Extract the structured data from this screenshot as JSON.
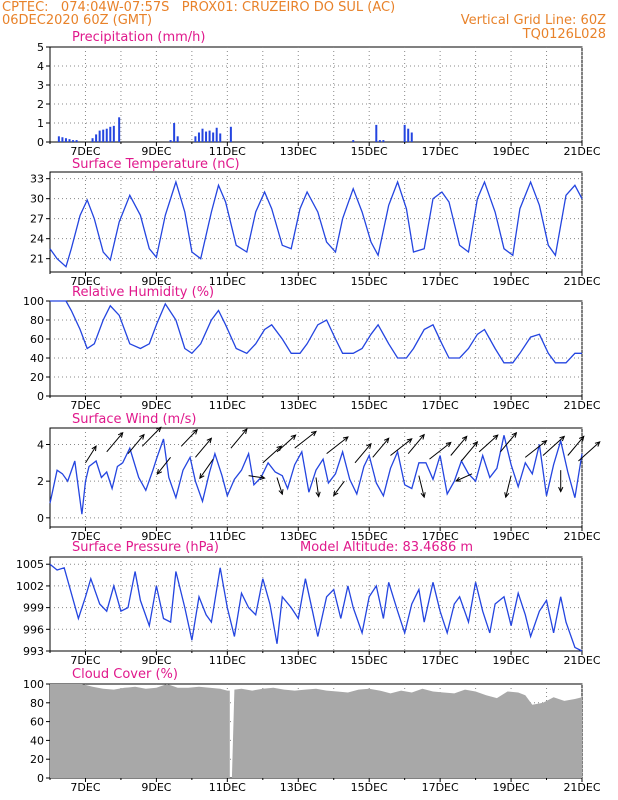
{
  "header": {
    "line1_left": "CPTEC:   074:04W-07:57S   PROX01: CRUZEIRO DO SUL (AC)",
    "line2_left": "06DEC2020 60Z (GMT)",
    "line2_right": "Vertical Grid Line: 60Z",
    "line3_right": "TQ0126L028",
    "color": "#e8822a"
  },
  "x_tick_labels": [
    "7DEC",
    "9DEC",
    "11DEC",
    "13DEC",
    "15DEC",
    "17DEC",
    "19DEC",
    "21DEC"
  ],
  "colors": {
    "title": "#e0198c",
    "line": "#2445e0",
    "bar": "#2445e0",
    "cloud": "#a8a8a8",
    "arrow": "#000000",
    "grid": "#888888"
  },
  "chart_data": [
    {
      "type": "bar",
      "title": "Precipitation (mm/h)",
      "ylim": [
        0,
        5
      ],
      "yticks": [
        0,
        1,
        2,
        3,
        4,
        5
      ],
      "x_unit": "days since 06DEC2020 00Z",
      "x": [
        0.25,
        0.35,
        0.45,
        0.55,
        0.65,
        0.75,
        1.2,
        1.3,
        1.4,
        1.5,
        1.6,
        1.7,
        1.8,
        1.95,
        3.4,
        3.5,
        3.6,
        4.1,
        4.2,
        4.3,
        4.4,
        4.5,
        4.6,
        4.7,
        4.8,
        5.1,
        8.55,
        9.2,
        9.3,
        9.4,
        10.0,
        10.1,
        10.2
      ],
      "values": [
        0.3,
        0.25,
        0.2,
        0.15,
        0.1,
        0.1,
        0.2,
        0.4,
        0.6,
        0.65,
        0.7,
        0.8,
        0.85,
        1.3,
        0.1,
        1.0,
        0.3,
        0.3,
        0.5,
        0.7,
        0.55,
        0.6,
        0.5,
        0.75,
        0.45,
        0.8,
        0.1,
        0.9,
        0.1,
        0.1,
        0.9,
        0.7,
        0.5
      ]
    },
    {
      "type": "line",
      "title": "Surface Temperature (nC)",
      "ylim": [
        19,
        34
      ],
      "yticks": [
        21,
        24,
        27,
        30,
        33
      ],
      "x": [
        0.0,
        0.2,
        0.45,
        0.6,
        0.85,
        1.05,
        1.25,
        1.5,
        1.7,
        1.95,
        2.25,
        2.55,
        2.8,
        3.0,
        3.25,
        3.55,
        3.8,
        4.0,
        4.25,
        4.55,
        4.75,
        4.95,
        5.25,
        5.55,
        5.8,
        6.05,
        6.25,
        6.55,
        6.8,
        7.05,
        7.25,
        7.55,
        7.8,
        8.05,
        8.25,
        8.55,
        8.8,
        9.05,
        9.25,
        9.55,
        9.8,
        10.05,
        10.25,
        10.55,
        10.8,
        11.05,
        11.25,
        11.55,
        11.8,
        12.05,
        12.25,
        12.55,
        12.8,
        13.05,
        13.25,
        13.55,
        13.8,
        14.05,
        14.25,
        14.55,
        14.8,
        15.0
      ],
      "values": [
        22.5,
        21.0,
        19.8,
        22.5,
        27.5,
        29.8,
        27.0,
        22.0,
        20.8,
        26.5,
        30.5,
        27.5,
        22.5,
        21.2,
        27.5,
        32.5,
        28.0,
        22.0,
        21.0,
        28.0,
        32.0,
        29.5,
        23.0,
        22.0,
        28.0,
        31.0,
        28.5,
        23.0,
        22.5,
        28.5,
        31.0,
        28.0,
        23.5,
        22.0,
        27.0,
        31.5,
        28.0,
        23.5,
        21.5,
        29.0,
        32.5,
        28.5,
        22.0,
        22.5,
        30.0,
        31.0,
        29.5,
        23.0,
        22.0,
        30.0,
        32.5,
        28.0,
        22.5,
        21.5,
        28.5,
        32.5,
        29.0,
        23.0,
        21.5,
        30.5,
        32.0,
        30.0
      ]
    },
    {
      "type": "line",
      "title": "Relative Humidity (%)",
      "ylim": [
        0,
        100
      ],
      "yticks": [
        0,
        20,
        40,
        60,
        80,
        100
      ],
      "x": [
        0.0,
        0.45,
        0.6,
        0.85,
        1.05,
        1.25,
        1.5,
        1.7,
        1.95,
        2.25,
        2.55,
        2.8,
        3.0,
        3.25,
        3.55,
        3.8,
        4.0,
        4.25,
        4.55,
        4.75,
        4.95,
        5.25,
        5.55,
        5.8,
        6.05,
        6.25,
        6.55,
        6.8,
        7.05,
        7.25,
        7.55,
        7.8,
        8.05,
        8.25,
        8.55,
        8.8,
        9.05,
        9.25,
        9.55,
        9.8,
        10.05,
        10.25,
        10.55,
        10.8,
        11.05,
        11.25,
        11.55,
        11.8,
        12.05,
        12.25,
        12.55,
        12.8,
        13.05,
        13.25,
        13.55,
        13.8,
        14.05,
        14.25,
        14.55,
        14.8,
        15.0
      ],
      "values": [
        100,
        100,
        90,
        70,
        50,
        55,
        80,
        95,
        85,
        55,
        50,
        55,
        75,
        97,
        80,
        50,
        45,
        55,
        80,
        90,
        75,
        50,
        45,
        55,
        70,
        75,
        60,
        45,
        45,
        55,
        75,
        80,
        60,
        45,
        45,
        50,
        65,
        75,
        55,
        40,
        40,
        50,
        70,
        75,
        55,
        40,
        40,
        50,
        65,
        70,
        50,
        35,
        35,
        45,
        62,
        65,
        45,
        35,
        35,
        45,
        45
      ]
    },
    {
      "type": "line",
      "title": "Surface Wind (m/s)",
      "ylim": [
        -0.5,
        4.9
      ],
      "yticks": [
        0,
        2,
        4
      ],
      "x": [
        0.0,
        0.2,
        0.35,
        0.5,
        0.7,
        0.9,
        1.0,
        1.1,
        1.3,
        1.45,
        1.6,
        1.75,
        1.9,
        2.05,
        2.25,
        2.5,
        2.7,
        2.9,
        3.0,
        3.2,
        3.35,
        3.55,
        3.75,
        3.95,
        4.1,
        4.3,
        4.5,
        4.65,
        4.85,
        5.0,
        5.2,
        5.4,
        5.6,
        5.75,
        5.95,
        6.15,
        6.35,
        6.55,
        6.7,
        6.9,
        7.1,
        7.3,
        7.5,
        7.7,
        7.85,
        8.05,
        8.25,
        8.45,
        8.65,
        8.85,
        9.0,
        9.2,
        9.4,
        9.6,
        9.8,
        10.0,
        10.2,
        10.4,
        10.6,
        10.8,
        11.0,
        11.2,
        11.4,
        11.6,
        11.8,
        12.0,
        12.2,
        12.4,
        12.6,
        12.8,
        13.0,
        13.2,
        13.4,
        13.6,
        13.8,
        14.0,
        14.2,
        14.4,
        14.6,
        14.8,
        15.0
      ],
      "values": [
        0.8,
        2.6,
        2.4,
        2.0,
        3.1,
        0.2,
        2.0,
        2.8,
        3.1,
        2.2,
        2.5,
        1.6,
        2.8,
        3.0,
        3.8,
        2.2,
        1.5,
        2.6,
        3.2,
        4.3,
        2.2,
        1.1,
        2.6,
        3.3,
        2.0,
        0.9,
        2.5,
        3.5,
        2.3,
        1.2,
        2.1,
        2.6,
        3.5,
        1.8,
        2.2,
        3.0,
        2.5,
        2.3,
        1.6,
        2.9,
        3.6,
        1.4,
        2.6,
        3.2,
        1.9,
        2.4,
        3.6,
        2.1,
        1.3,
        2.8,
        3.4,
        1.9,
        1.2,
        2.7,
        3.6,
        1.8,
        1.6,
        3.0,
        3.0,
        2.1,
        3.4,
        1.3,
        2.0,
        3.1,
        2.4,
        2.0,
        3.4,
        2.2,
        2.7,
        4.5,
        2.9,
        1.7,
        3.0,
        2.4,
        4.0,
        1.2,
        2.9,
        4.2,
        2.5,
        1.1,
        3.5
      ]
    },
    {
      "type": "line",
      "title": "Surface Pressure (hPa)",
      "subtitle": "Model Altitude: 83.4686 m",
      "ylim": [
        993,
        1006
      ],
      "yticks": [
        993,
        996,
        999,
        1002,
        1005
      ],
      "x": [
        0.0,
        0.2,
        0.4,
        0.6,
        0.8,
        1.0,
        1.15,
        1.4,
        1.6,
        1.8,
        2.0,
        2.2,
        2.4,
        2.55,
        2.8,
        3.0,
        3.2,
        3.4,
        3.55,
        3.8,
        4.0,
        4.2,
        4.4,
        4.55,
        4.8,
        5.0,
        5.2,
        5.4,
        5.6,
        5.8,
        6.0,
        6.2,
        6.4,
        6.55,
        6.8,
        7.0,
        7.2,
        7.4,
        7.55,
        7.8,
        8.0,
        8.2,
        8.4,
        8.55,
        8.8,
        9.0,
        9.2,
        9.4,
        9.55,
        9.8,
        10.0,
        10.2,
        10.4,
        10.55,
        10.8,
        11.0,
        11.2,
        11.4,
        11.55,
        11.8,
        12.0,
        12.2,
        12.4,
        12.55,
        12.8,
        13.0,
        13.2,
        13.4,
        13.55,
        13.8,
        14.0,
        14.2,
        14.4,
        14.55,
        14.8,
        15.0
      ],
      "values": [
        1005.0,
        1004.2,
        1004.5,
        1001.0,
        997.5,
        1000.5,
        1003.0,
        999.5,
        998.5,
        1002.0,
        998.5,
        999.0,
        1004.0,
        1000.0,
        996.5,
        1002.0,
        997.5,
        997.0,
        1004.0,
        999.0,
        994.5,
        1000.5,
        998.0,
        997.0,
        1004.5,
        999.0,
        995.0,
        1001.0,
        999.0,
        998.0,
        1003.0,
        999.5,
        994.0,
        1000.5,
        999.0,
        997.5,
        1003.0,
        998.5,
        995.0,
        1000.5,
        1001.5,
        997.5,
        1002.0,
        999.0,
        995.5,
        1000.5,
        1002.0,
        997.5,
        1002.5,
        998.5,
        995.5,
        999.5,
        1001.5,
        997.0,
        1002.5,
        998.5,
        995.5,
        999.5,
        1000.5,
        997.0,
        1002.5,
        998.5,
        995.5,
        999.5,
        1000.5,
        996.5,
        1001.0,
        998.0,
        995.0,
        998.5,
        1000.0,
        995.5,
        1000.5,
        997.0,
        993.5,
        993.0
      ]
    },
    {
      "type": "area",
      "title": "Cloud Cover (%)",
      "ylim": [
        0,
        100
      ],
      "yticks": [
        0,
        20,
        40,
        60,
        80,
        100
      ],
      "x": [
        0.0,
        0.3,
        0.6,
        0.9,
        1.2,
        1.5,
        1.8,
        2.1,
        2.4,
        2.7,
        3.0,
        3.3,
        3.6,
        3.9,
        4.2,
        4.5,
        4.8,
        5.0,
        5.1,
        5.2,
        5.4,
        5.7,
        6.0,
        6.3,
        6.6,
        6.9,
        7.2,
        7.5,
        7.8,
        8.1,
        8.4,
        8.7,
        9.0,
        9.3,
        9.6,
        9.9,
        10.2,
        10.5,
        10.8,
        11.1,
        11.4,
        11.7,
        12.0,
        12.3,
        12.6,
        12.9,
        13.2,
        13.4,
        13.6,
        13.9,
        14.2,
        14.5,
        14.8,
        15.0
      ],
      "values": [
        100,
        100,
        100,
        100,
        97,
        95,
        94,
        96,
        97,
        95,
        96,
        100,
        96,
        96,
        97,
        96,
        95,
        93,
        0,
        94,
        95,
        93,
        95,
        96,
        94,
        93,
        94,
        95,
        93,
        92,
        91,
        94,
        95,
        93,
        90,
        93,
        91,
        95,
        92,
        91,
        90,
        94,
        92,
        88,
        85,
        92,
        91,
        88,
        78,
        80,
        86,
        82,
        84,
        86
      ]
    }
  ]
}
